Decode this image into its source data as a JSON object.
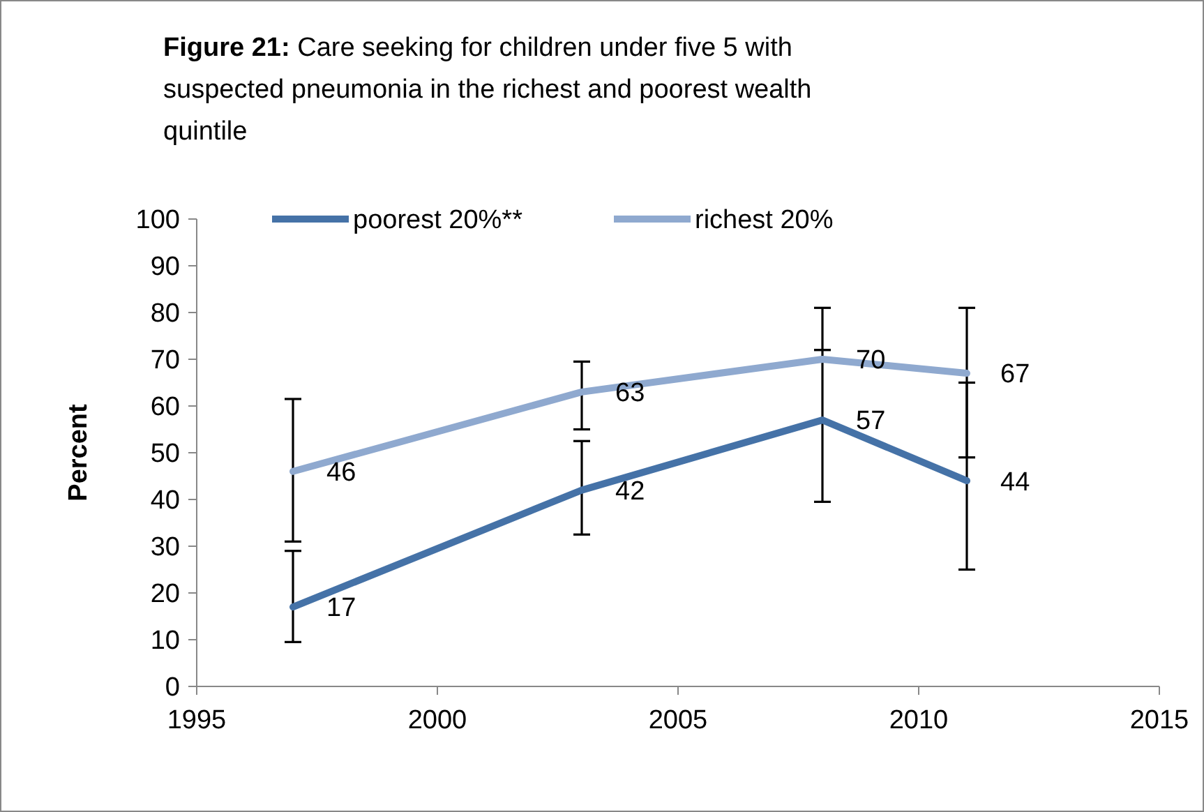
{
  "chart_data": {
    "type": "line",
    "title": "Figure 21: Care seeking for children under five 5 with suspected pneumonia in the richest and poorest wealth quintile",
    "ylabel": "Percent",
    "x": [
      1997,
      2003,
      2008,
      2011
    ],
    "series": [
      {
        "name": "poorest 20%**",
        "color": "#4572a7",
        "values": [
          17,
          42,
          57,
          44
        ],
        "errors": [
          [
            9.5,
            29
          ],
          [
            32.5,
            52.5
          ],
          [
            39.5,
            72
          ],
          [
            25,
            65
          ]
        ]
      },
      {
        "name": "richest 20%",
        "color": "#8fa9cf",
        "values": [
          46,
          63,
          70,
          67
        ],
        "errors": [
          [
            31,
            61.5
          ],
          [
            55,
            69.5
          ],
          [
            72,
            81
          ],
          [
            49,
            81
          ]
        ]
      }
    ],
    "xlim": [
      1995,
      2015
    ],
    "xticks": [
      1995,
      2000,
      2005,
      2010,
      2015
    ],
    "ylim": [
      0,
      100
    ],
    "yticks": [
      0,
      10,
      20,
      30,
      40,
      50,
      60,
      70,
      80,
      90,
      100
    ],
    "grid": false,
    "legend": "top",
    "marker": "none",
    "line_style": "solid",
    "data_labels": true
  }
}
